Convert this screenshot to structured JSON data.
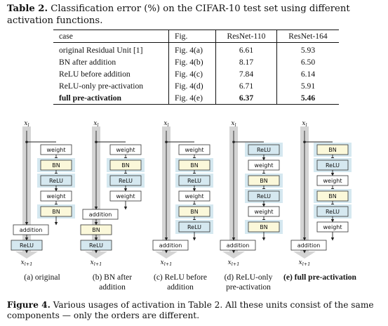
{
  "table_caption": {
    "label": "Table 2.",
    "text": "Classification error (%) on the CIFAR-10 test set using different activation functions."
  },
  "table": {
    "headers": [
      "case",
      "Fig.",
      "ResNet-110",
      "ResNet-164"
    ],
    "rows": [
      [
        "original Residual Unit [1]",
        "Fig. 4(a)",
        "6.61",
        "5.93"
      ],
      [
        "BN after addition",
        "Fig. 4(b)",
        "8.17",
        "6.50"
      ],
      [
        "ReLU before addition",
        "Fig. 4(c)",
        "7.84",
        "6.14"
      ],
      [
        "ReLU-only pre-activation",
        "Fig. 4(d)",
        "6.71",
        "5.91"
      ],
      [
        "full pre-activation",
        "Fig. 4(e)",
        "6.37",
        "5.46"
      ]
    ]
  },
  "symbols": {
    "x_in": "x",
    "x_in_sub": "l",
    "x_out": "x",
    "x_out_sub": "l+1"
  },
  "boxes": {
    "weight": "weight",
    "bn": "BN",
    "relu": "ReLU",
    "addition": "addition"
  },
  "subfigures": [
    {
      "id": "a",
      "caption_lines": [
        "(a) original"
      ]
    },
    {
      "id": "b",
      "caption_lines": [
        "(b) BN after",
        "addition"
      ]
    },
    {
      "id": "c",
      "caption_lines": [
        "(c) ReLU before",
        "addition"
      ]
    },
    {
      "id": "d",
      "caption_lines": [
        "(d) ReLU-only",
        "pre-activation"
      ]
    },
    {
      "id": "e",
      "caption_lines": [
        "(e) full pre-activation"
      ]
    }
  ],
  "figure_caption": {
    "label": "Figure 4.",
    "text": "Various usages of activation in Table 2. All these units consist of the same components — only the orders are different."
  },
  "colors": {
    "bn_fill": "#fbf8da",
    "relu_fill": "#d5e8f0",
    "gray_path": "#d4d4d4",
    "line": "#222222"
  }
}
